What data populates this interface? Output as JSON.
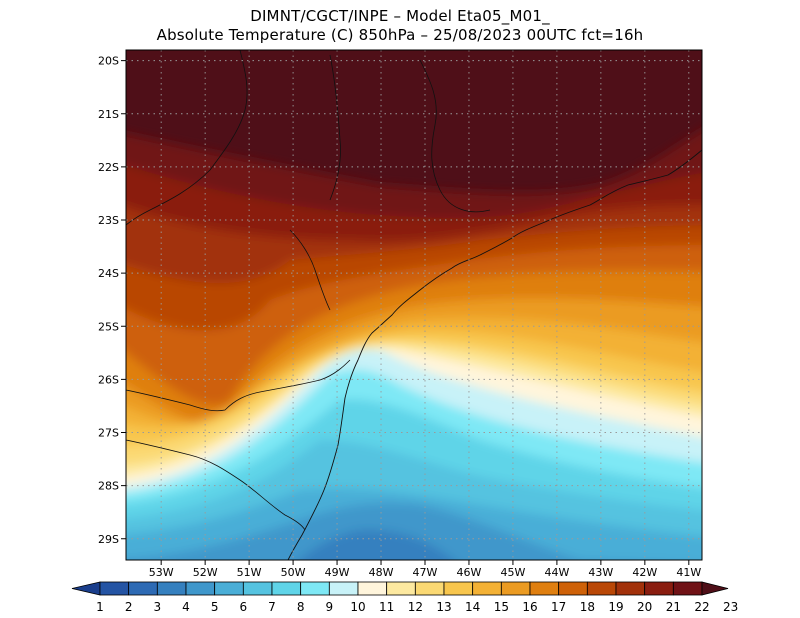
{
  "header": {
    "line1": "DIMNT/CGCT/INPE –  Model Eta05_M01_",
    "line2": "Absolute Temperature (C) 850hPa –  25/08/2023 00UTC fct=16h"
  },
  "map": {
    "lat_labels": [
      "20S",
      "21S",
      "22S",
      "23S",
      "24S",
      "25S",
      "26S",
      "27S",
      "28S",
      "29S"
    ],
    "lon_labels": [
      "53W",
      "52W",
      "51W",
      "50W",
      "49W",
      "48W",
      "47W",
      "46W",
      "45W",
      "44W",
      "43W",
      "42W",
      "41W"
    ],
    "lat_range": [
      -29.4,
      -19.8
    ],
    "lon_range": [
      -53.8,
      -40.7
    ]
  },
  "colorbar": {
    "labels": [
      "1",
      "2",
      "3",
      "4",
      "5",
      "6",
      "7",
      "8",
      "9",
      "10",
      "11",
      "12",
      "13",
      "14",
      "15",
      "16",
      "17",
      "18",
      "19",
      "20",
      "21",
      "22",
      "23"
    ],
    "colors": [
      "#1a3e8c",
      "#2454a4",
      "#2d6ab4",
      "#3580bf",
      "#3f97cb",
      "#4aaed7",
      "#55c3e0",
      "#5fd4e8",
      "#7ee8f5",
      "#c8f2f8",
      "#fff5dc",
      "#fde9a0",
      "#fbd973",
      "#f8c64d",
      "#f3b135",
      "#eb9b22",
      "#df7f10",
      "#ce6108",
      "#b94706",
      "#a2310a",
      "#8a1d10",
      "#701216",
      "#4f0f18"
    ]
  }
}
